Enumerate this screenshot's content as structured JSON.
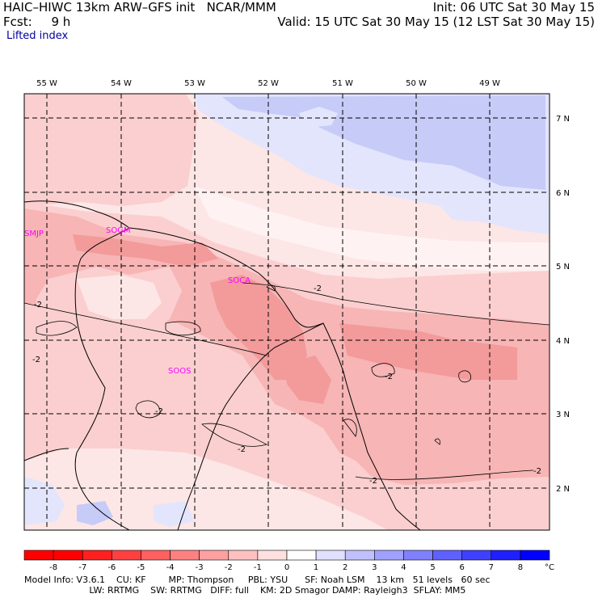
{
  "header": {
    "title_left": "HAIC–HIWC 13km ARW–GFS init   NCAR/MMM",
    "forecast": "Fcst:     9 h",
    "field_name": "Lifted index",
    "init_time": "Init: 06 UTC Sat 30 May 15",
    "valid_time": "Valid: 15 UTC Sat 30 May 15 (12 LST Sat 30 May 15)"
  },
  "map": {
    "lon_labels": [
      "55 W",
      "54 W",
      "53 W",
      "52 W",
      "51 W",
      "50 W",
      "49 W"
    ],
    "lat_labels": [
      "7 N",
      "6 N",
      "5 N",
      "4 N",
      "3 N",
      "2 N"
    ],
    "stations": [
      "SMJP",
      "SOGM",
      "SOCA",
      "SOOS"
    ],
    "contour_label": "-2",
    "colors": {
      "very_strong_neg": "#f39a9a",
      "strong_neg": "#f7b5b5",
      "moderate_neg": "#fbcfcf",
      "weak_neg": "#fde6e6",
      "neutral": "#fff8f8",
      "weak_pos": "#e3e5fc",
      "moderate_pos": "#c6cbf8",
      "station_label": "#ff00ff"
    }
  },
  "colorbar": {
    "ticks": [
      "-8",
      "-7",
      "-6",
      "-5",
      "-4",
      "-3",
      "-2",
      "-1",
      "0",
      "1",
      "2",
      "3",
      "4",
      "5",
      "6",
      "7",
      "8"
    ],
    "unit": "°C",
    "colors": [
      "#ff0000",
      "#ff2020",
      "#ff4040",
      "#ff6060",
      "#ff8080",
      "#ffa0a0",
      "#ffc0c0",
      "#ffe0e0",
      "#ffffff",
      "#e0e0ff",
      "#c0c0ff",
      "#a0a0ff",
      "#8080ff",
      "#6060ff",
      "#4040ff",
      "#2020ff",
      "#0000ff"
    ]
  },
  "footer": {
    "line1": "Model Info: V3.6.1    CU: KF        MP: Thompson     PBL: YSU      SF: Noah LSM    13 km   51 levels   60 sec",
    "line2": "                       LW: RRTMG    SW: RRTMG   DIFF: full    KM: 2D Smagor DAMP: Rayleigh3  SFLAY: MM5"
  }
}
